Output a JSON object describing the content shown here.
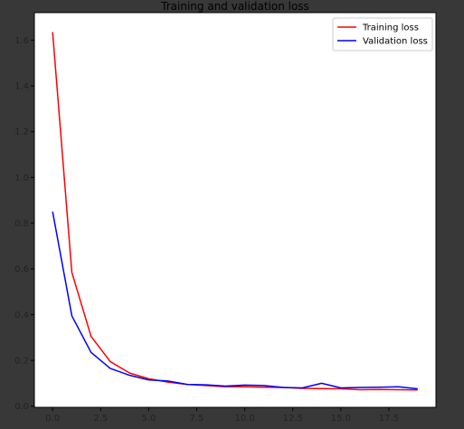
{
  "chart_data": {
    "type": "line",
    "title": "Training and validation loss",
    "xlabel": "",
    "ylabel": "",
    "xlim": [
      -0.95,
      19.95
    ],
    "ylim": [
      -0.005,
      1.72
    ],
    "x_ticks": [
      0.0,
      2.5,
      5.0,
      7.5,
      10.0,
      12.5,
      15.0,
      17.5
    ],
    "x_tick_labels": [
      "0.0",
      "2.5",
      "5.0",
      "7.5",
      "10.0",
      "12.5",
      "15.0",
      "17.5"
    ],
    "y_ticks": [
      0.0,
      0.2,
      0.4,
      0.6,
      0.8,
      1.0,
      1.2,
      1.4,
      1.6
    ],
    "y_tick_labels": [
      "0.0",
      "0.2",
      "0.4",
      "0.6",
      "0.8",
      "1.0",
      "1.2",
      "1.4",
      "1.6"
    ],
    "grid": false,
    "legend_position": "top-right",
    "x": [
      0,
      1,
      2,
      3,
      4,
      5,
      6,
      7,
      8,
      9,
      10,
      11,
      12,
      13,
      14,
      15,
      16,
      17,
      18,
      19
    ],
    "series": [
      {
        "name": "Training loss",
        "color": "#ff0000",
        "values": [
          1.635,
          0.585,
          0.305,
          0.195,
          0.145,
          0.12,
          0.105,
          0.095,
          0.09,
          0.085,
          0.085,
          0.083,
          0.082,
          0.078,
          0.077,
          0.076,
          0.072,
          0.073,
          0.072,
          0.071
        ]
      },
      {
        "name": "Validation loss",
        "color": "#0000ff",
        "values": [
          0.85,
          0.395,
          0.235,
          0.165,
          0.135,
          0.115,
          0.11,
          0.095,
          0.093,
          0.088,
          0.092,
          0.09,
          0.082,
          0.08,
          0.1,
          0.08,
          0.082,
          0.083,
          0.085,
          0.076
        ]
      }
    ]
  }
}
